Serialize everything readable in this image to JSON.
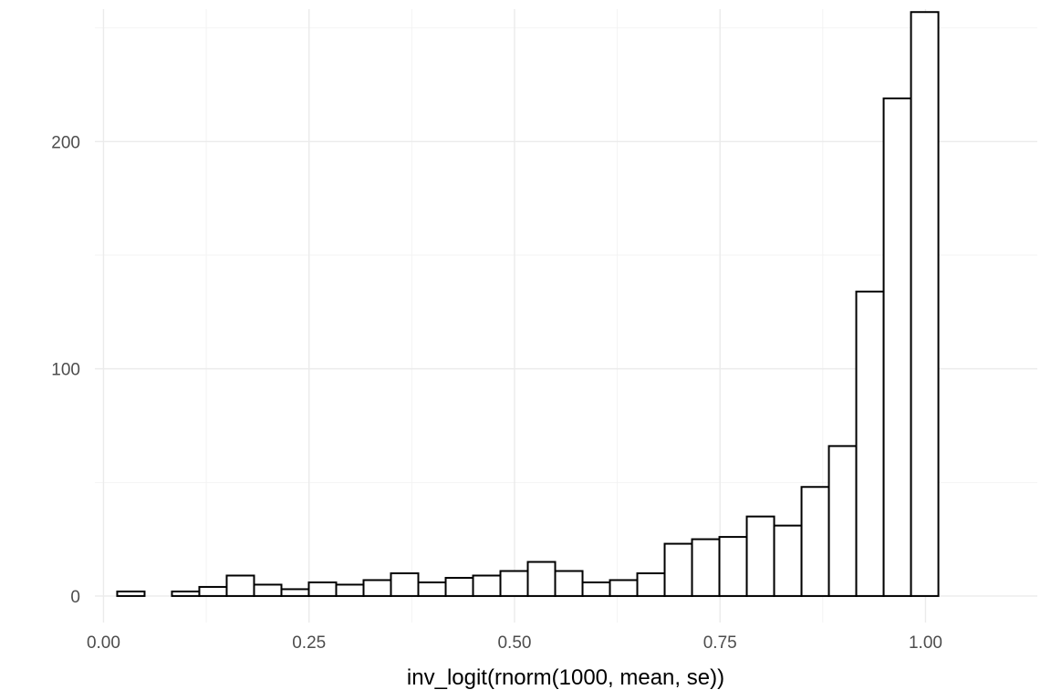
{
  "chart_data": {
    "type": "bar",
    "title": "",
    "xlabel": "inv_logit(rnorm(1000, mean, se))",
    "ylabel": "",
    "xlim": [
      -0.0105,
      1.136
    ],
    "ylim": [
      -11.67,
      258.3
    ],
    "x_ticks": [
      0,
      0.25,
      0.5,
      0.75,
      1
    ],
    "x_tick_labels": [
      "0.00",
      "0.25",
      "0.50",
      "0.75",
      "1.00"
    ],
    "y_ticks": [
      0,
      100,
      200
    ],
    "y_tick_labels": [
      "0",
      "100",
      "200"
    ],
    "grid": true,
    "legend": "none",
    "bin_width": 0.0333,
    "bin_centers": [
      0.0333,
      0.0666,
      0.0999,
      0.1332,
      0.1665,
      0.1998,
      0.2331,
      0.2664,
      0.2997,
      0.333,
      0.3663,
      0.3996,
      0.4329,
      0.4662,
      0.4995,
      0.5328,
      0.5661,
      0.5994,
      0.6327,
      0.666,
      0.6993,
      0.7326,
      0.7659,
      0.7992,
      0.8325,
      0.8658,
      0.8991,
      0.9324,
      0.9657,
      0.999
    ],
    "values": [
      2,
      0,
      2,
      4,
      9,
      5,
      3,
      6,
      5,
      7,
      10,
      6,
      8,
      9,
      11,
      15,
      11,
      6,
      7,
      10,
      23,
      25,
      26,
      35,
      31,
      48,
      66,
      134,
      219,
      257
    ],
    "colors": {
      "fill": "#ffffff",
      "outline": "#000000",
      "grid": "#ebebeb"
    }
  }
}
